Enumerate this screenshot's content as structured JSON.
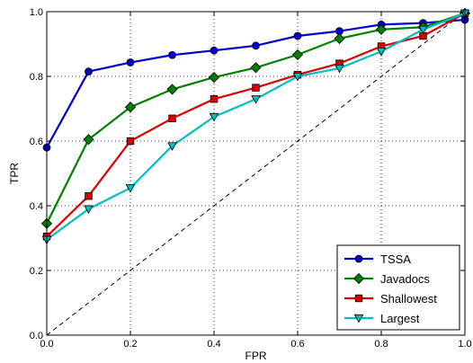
{
  "chart_data": {
    "type": "line",
    "xlabel": "FPR",
    "ylabel": "TPR",
    "xlim": [
      0,
      1
    ],
    "ylim": [
      0,
      1
    ],
    "xticks": [
      "0.0",
      "0.2",
      "0.4",
      "0.6",
      "0.8",
      "1.0"
    ],
    "yticks": [
      "0.0",
      "0.2",
      "0.4",
      "0.6",
      "0.8",
      "1.0"
    ],
    "grid": true,
    "legend_position": "bottom-right",
    "diagonal": true,
    "x": [
      0.0,
      0.1,
      0.2,
      0.3,
      0.4,
      0.5,
      0.6,
      0.7,
      0.8,
      0.9,
      1.0
    ],
    "series": [
      {
        "name": "TSSA",
        "color": "#0000cc",
        "marker": "circle",
        "values": [
          0.58,
          0.815,
          0.843,
          0.866,
          0.88,
          0.895,
          0.925,
          0.94,
          0.96,
          0.965,
          0.975
        ]
      },
      {
        "name": "Javadocs",
        "color": "#007f00",
        "marker": "diamond",
        "values": [
          0.345,
          0.605,
          0.705,
          0.76,
          0.797,
          0.827,
          0.867,
          0.917,
          0.945,
          0.952,
          0.995
        ]
      },
      {
        "name": "Shallowest",
        "color": "#dd0000",
        "marker": "square",
        "values": [
          0.305,
          0.43,
          0.6,
          0.67,
          0.73,
          0.765,
          0.805,
          0.84,
          0.893,
          0.925,
          0.995
        ]
      },
      {
        "name": "Largest",
        "color": "#00bfbf",
        "marker": "triangle-down",
        "values": [
          0.295,
          0.39,
          0.455,
          0.585,
          0.675,
          0.73,
          0.8,
          0.825,
          0.877,
          0.945,
          0.995
        ]
      }
    ]
  }
}
